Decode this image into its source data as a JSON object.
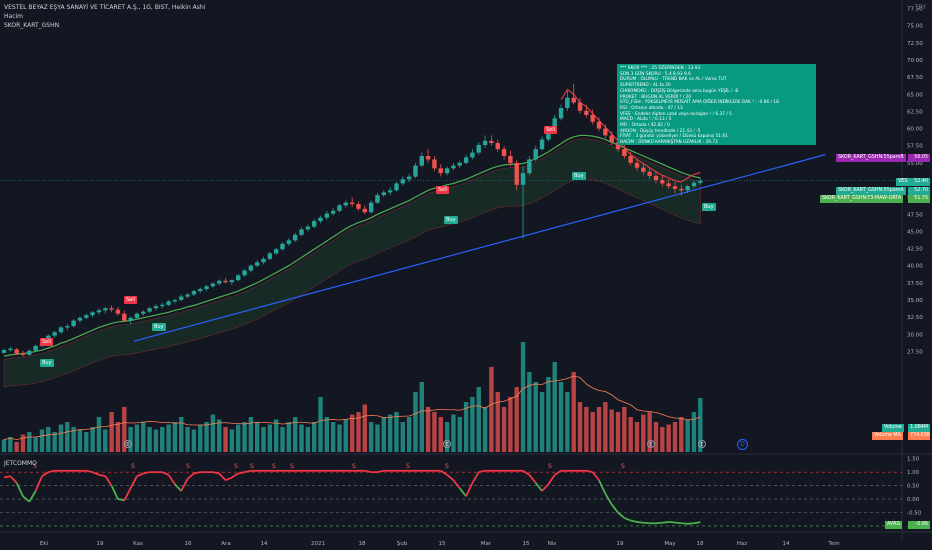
{
  "header": {
    "title": "VESTEL BEYAZ EŞYA SANAYİ VE TİCARET A.Ş., 1G, BIST, Heikin Ashi",
    "line2": "Hacim",
    "line3": "SKOR_KART_GSHN"
  },
  "currency": "TRY",
  "info_box": [
    "*** SKOR ***          : 25  ÜZERİNDEN  : 13.93",
    "SON 3 GÜN SKORU   : 5.4    8.93    9.6",
    "DURUM          : OLUMLU - TREND BAK ve AL / Varsa TUT",
    "SUPERTREND   : AL ta          20",
    "CHIKOMOKO    : DÜŞÜŞ Bölgesinde ama bugün YEŞİL      / -8",
    "PROKET         : BUGÜN AL VERDİ !        / 20",
    "STO_FISH      : YÜKSELMEYE MÜSAİT AMA DİĞER İNDİKLERE BAK ! : -0.86    / 18",
    "RSI              : Ortanın altında : 47 / 13",
    "VFEE             : Endeks dipten uzak veya durağan !    / 6.37   / 5",
    "MACD             : ALda !      / 0.13        / 5",
    "MFI               : Ortada        / 42.82   / 0",
    "AROON           : Düşüş trendinde       / 21.43   / -5",
    "FİYAT            : 3 gündür yükseliyor  /    Dünkü kapanış 51.61",
    "HACİM            : DÜNKÜ KAPANIŞTAN UZAKLIK   : 39.72"
  ],
  "price_labels": [
    {
      "text": "SKOR_KART_GSHN:55pamB",
      "value": "56.05",
      "bg": "#9c27b0"
    },
    {
      "text": "VESBE",
      "value": "52.40",
      "bg": "#22ab94"
    },
    {
      "text": "SKOR_KART_GSHN:55pamA",
      "value": "52.70",
      "bg": "#22ab94"
    },
    {
      "text": "SKOR_KART_GSHN-T3-MAW-ORTA",
      "value": "51.75",
      "bg": "#4caf50"
    }
  ],
  "volume_labels": [
    {
      "text": "Volume",
      "value": "1.084M",
      "bg": "#22ab94"
    },
    {
      "text": "Volume MA",
      "value": "774.03K",
      "bg": "#ff7f50"
    }
  ],
  "indicator": {
    "title": "JETCOMMO",
    "last_label": "AVRG",
    "last_value": "-0.86",
    "s_marks": [
      "S",
      "S",
      "S",
      "S",
      "S",
      "S",
      "S",
      "S",
      "S",
      "S",
      "S",
      "S"
    ],
    "circle_marks": [
      "E",
      "E",
      "E",
      "E"
    ],
    "settings": "D"
  },
  "axes": {
    "price_ticks": [
      "77.50",
      "75.00",
      "72.50",
      "70.00",
      "67.50",
      "65.00",
      "62.50",
      "60.00",
      "57.50",
      "55.00",
      "52.50",
      "50.00",
      "47.50",
      "45.00",
      "42.50",
      "40.00",
      "37.50",
      "35.00",
      "32.50",
      "30.00",
      "27.50"
    ],
    "osc_ticks": [
      "1.50",
      "1.00",
      "0.50",
      "0.00",
      "-0.50",
      "-1.00"
    ],
    "time_ticks": [
      "Eki",
      "19",
      "Kas",
      "16",
      "Ara",
      "14",
      "2021",
      "18",
      "Şub",
      "15",
      "Mar",
      "15",
      "Nis",
      "19",
      "May",
      "18",
      "Haz",
      "14",
      "Tem"
    ]
  },
  "signals": [
    {
      "type": "sell",
      "label": "Sell"
    },
    {
      "type": "buy",
      "label": "Buy"
    },
    {
      "type": "sell",
      "label": "Sell"
    },
    {
      "type": "buy",
      "label": "Buy"
    },
    {
      "type": "sell",
      "label": "Sell"
    },
    {
      "type": "buy",
      "label": "Buy"
    },
    {
      "type": "sell",
      "label": "Sell"
    },
    {
      "type": "buy",
      "label": "Buy"
    },
    {
      "type": "buy",
      "label": "Buy"
    }
  ],
  "colors": {
    "up": "#26a69a",
    "down": "#ef5350",
    "ma": "#4caf50",
    "trend": "#2962ff",
    "red_ma": "#f23645",
    "osc": "#f23645"
  },
  "chart_data": {
    "type": "candlestick",
    "ylim": [
      26.25,
      78.75
    ],
    "ohlc_ha": [
      [
        27.3,
        27.9,
        27.1,
        27.7
      ],
      [
        27.7,
        28.2,
        27.5,
        27.9
      ],
      [
        27.8,
        28.0,
        27.0,
        27.2
      ],
      [
        27.2,
        27.6,
        26.8,
        27.0
      ],
      [
        27.0,
        27.8,
        26.9,
        27.6
      ],
      [
        27.6,
        28.5,
        27.4,
        28.3
      ],
      [
        28.3,
        29.0,
        28.1,
        28.8
      ],
      [
        28.8,
        30.0,
        28.6,
        29.8
      ],
      [
        29.8,
        30.5,
        29.5,
        30.3
      ],
      [
        30.3,
        31.2,
        30.1,
        31.0
      ],
      [
        31.0,
        31.5,
        30.6,
        31.2
      ],
      [
        31.2,
        32.2,
        31.0,
        32.0
      ],
      [
        32.0,
        32.6,
        31.7,
        32.4
      ],
      [
        32.4,
        33.0,
        32.2,
        32.8
      ],
      [
        32.8,
        33.4,
        32.5,
        33.2
      ],
      [
        33.2,
        33.8,
        32.9,
        33.5
      ],
      [
        33.5,
        34.0,
        33.0,
        33.8
      ],
      [
        33.8,
        34.2,
        33.2,
        33.6
      ],
      [
        33.6,
        34.0,
        32.7,
        33.0
      ],
      [
        33.0,
        33.4,
        31.8,
        32.0
      ],
      [
        32.0,
        32.6,
        31.5,
        32.4
      ],
      [
        32.4,
        33.2,
        32.2,
        33.0
      ],
      [
        33.0,
        33.5,
        32.7,
        33.3
      ],
      [
        33.3,
        34.0,
        33.1,
        33.8
      ],
      [
        33.8,
        34.4,
        33.5,
        34.1
      ],
      [
        34.1,
        34.6,
        33.8,
        34.3
      ],
      [
        34.3,
        35.0,
        34.1,
        34.8
      ],
      [
        34.8,
        35.2,
        34.5,
        35.0
      ],
      [
        35.0,
        35.8,
        34.8,
        35.5
      ],
      [
        35.5,
        36.0,
        35.3,
        35.8
      ],
      [
        35.8,
        36.5,
        35.6,
        36.3
      ],
      [
        36.3,
        36.8,
        36.0,
        36.6
      ],
      [
        36.6,
        37.2,
        36.3,
        37.0
      ],
      [
        37.0,
        37.6,
        36.8,
        37.4
      ],
      [
        37.4,
        38.0,
        37.1,
        37.8
      ],
      [
        37.8,
        38.2,
        37.4,
        37.6
      ],
      [
        37.6,
        38.0,
        37.2,
        37.9
      ],
      [
        37.9,
        38.8,
        37.7,
        38.6
      ],
      [
        38.6,
        39.5,
        38.4,
        39.3
      ],
      [
        39.3,
        40.2,
        39.0,
        40.0
      ],
      [
        40.0,
        40.8,
        39.8,
        40.5
      ],
      [
        40.5,
        41.3,
        40.2,
        41.0
      ],
      [
        41.0,
        42.0,
        40.8,
        41.8
      ],
      [
        41.8,
        42.6,
        41.6,
        42.4
      ],
      [
        42.4,
        43.4,
        42.2,
        43.2
      ],
      [
        43.2,
        44.0,
        42.9,
        43.7
      ],
      [
        43.7,
        44.8,
        43.5,
        44.5
      ],
      [
        44.5,
        45.6,
        44.3,
        45.3
      ],
      [
        45.3,
        46.0,
        45.0,
        45.7
      ],
      [
        45.7,
        46.8,
        45.5,
        46.5
      ],
      [
        46.5,
        47.3,
        46.2,
        47.0
      ],
      [
        47.0,
        48.0,
        46.7,
        47.6
      ],
      [
        47.6,
        48.4,
        47.3,
        48.0
      ],
      [
        48.0,
        49.0,
        47.8,
        48.8
      ],
      [
        48.8,
        49.5,
        48.5,
        49.2
      ],
      [
        49.2,
        50.0,
        48.6,
        49.0
      ],
      [
        49.0,
        49.4,
        48.0,
        48.3
      ],
      [
        48.3,
        48.8,
        47.5,
        47.8
      ],
      [
        47.8,
        49.5,
        47.6,
        49.2
      ],
      [
        49.2,
        50.6,
        49.0,
        50.3
      ],
      [
        50.3,
        51.0,
        50.0,
        50.7
      ],
      [
        50.7,
        51.4,
        50.3,
        51.0
      ],
      [
        51.0,
        52.2,
        50.8,
        52.0
      ],
      [
        52.0,
        53.0,
        51.7,
        52.6
      ],
      [
        52.6,
        53.4,
        52.2,
        53.0
      ],
      [
        53.0,
        55.0,
        52.8,
        54.6
      ],
      [
        54.6,
        56.5,
        54.4,
        56.0
      ],
      [
        56.0,
        57.0,
        55.0,
        55.5
      ],
      [
        55.5,
        56.0,
        53.8,
        54.2
      ],
      [
        54.2,
        54.8,
        53.0,
        53.5
      ],
      [
        53.5,
        54.5,
        53.2,
        54.2
      ],
      [
        54.2,
        55.0,
        53.9,
        54.6
      ],
      [
        54.6,
        55.3,
        54.3,
        55.0
      ],
      [
        55.0,
        56.2,
        54.8,
        55.8
      ],
      [
        55.8,
        57.0,
        55.5,
        56.5
      ],
      [
        56.5,
        58.0,
        56.2,
        57.6
      ],
      [
        57.6,
        59.0,
        57.2,
        58.2
      ],
      [
        58.2,
        59.0,
        57.5,
        57.9
      ],
      [
        57.9,
        58.4,
        56.6,
        57.0
      ],
      [
        57.0,
        57.5,
        55.5,
        56.0
      ],
      [
        56.0,
        56.8,
        54.5,
        55.0
      ],
      [
        55.0,
        55.4,
        51.0,
        51.8
      ],
      [
        51.8,
        54.5,
        44.0,
        53.5
      ],
      [
        53.5,
        56.0,
        53.2,
        55.5
      ],
      [
        55.5,
        57.5,
        55.2,
        57.0
      ],
      [
        57.0,
        58.8,
        56.8,
        58.4
      ],
      [
        58.4,
        60.4,
        58.1,
        60.0
      ],
      [
        60.0,
        62.0,
        59.7,
        61.5
      ],
      [
        61.5,
        63.5,
        61.2,
        63.0
      ],
      [
        63.0,
        65.5,
        62.6,
        64.5
      ],
      [
        64.5,
        66.5,
        63.5,
        63.8
      ],
      [
        63.8,
        64.5,
        62.2,
        62.6
      ],
      [
        62.6,
        63.4,
        61.6,
        62.0
      ],
      [
        62.0,
        62.8,
        60.6,
        61.0
      ],
      [
        61.0,
        61.6,
        59.6,
        60.0
      ],
      [
        60.0,
        60.6,
        58.6,
        59.0
      ],
      [
        59.0,
        59.6,
        57.6,
        58.0
      ],
      [
        58.0,
        58.6,
        56.6,
        57.0
      ],
      [
        57.0,
        57.6,
        55.6,
        56.0
      ],
      [
        56.0,
        56.6,
        54.6,
        55.0
      ],
      [
        55.0,
        55.6,
        53.8,
        54.3
      ],
      [
        54.3,
        55.0,
        53.2,
        53.7
      ],
      [
        53.7,
        54.4,
        52.6,
        53.1
      ],
      [
        53.1,
        53.8,
        52.0,
        52.5
      ],
      [
        52.5,
        53.2,
        51.6,
        52.0
      ],
      [
        52.0,
        52.6,
        51.2,
        51.6
      ],
      [
        51.6,
        52.2,
        50.6,
        51.2
      ],
      [
        51.2,
        51.8,
        50.2,
        51.0
      ],
      [
        51.0,
        51.8,
        50.6,
        51.6
      ],
      [
        51.6,
        52.4,
        51.3,
        52.1
      ],
      [
        52.1,
        52.8,
        51.8,
        52.4
      ]
    ],
    "ma_green": [
      26.8,
      27.0,
      27.1,
      27.2,
      27.3,
      27.5,
      27.7,
      28.0,
      28.3,
      28.7,
      29.0,
      29.4,
      29.8,
      30.2,
      30.6,
      31.0,
      31.3,
      31.6,
      31.8,
      31.9,
      32.0,
      32.2,
      32.4,
      32.6,
      32.8,
      33.0,
      33.2,
      33.5,
      33.7,
      34.0,
      34.2,
      34.5,
      34.8,
      35.1,
      35.4,
      35.7,
      36.0,
      36.3,
      36.7,
      37.1,
      37.5,
      38.0,
      38.5,
      39.0,
      39.5,
      40.0,
      40.6,
      41.2,
      41.8,
      42.4,
      43.0,
      43.6,
      44.2,
      44.8,
      45.4,
      45.9,
      46.3,
      46.6,
      47.0,
      47.5,
      47.9,
      48.3,
      48.7,
      49.1,
      49.5,
      50.0,
      50.5,
      51.0,
      51.3,
      51.5,
      51.8,
      52.0,
      52.3,
      52.6,
      53.0,
      53.4,
      53.8,
      54.2,
      54.5,
      54.7,
      54.8,
      54.8,
      54.9,
      55.2,
      55.6,
      56.1,
      56.6,
      57.2,
      57.8,
      58.4,
      58.8,
      59.0,
      59.0,
      58.9,
      58.7,
      58.4,
      58.0,
      57.6,
      57.2,
      56.8,
      56.4,
      56.0,
      55.6,
      55.2,
      54.8,
      54.4,
      54.0,
      53.6,
      53.3,
      53.0,
      52.8
    ],
    "trendline": {
      "x0": 0,
      "y0": 26.8,
      "x1": 110,
      "y1": 56.2
    },
    "volume": [
      0.25,
      0.3,
      0.2,
      0.35,
      0.4,
      0.3,
      0.45,
      0.5,
      0.4,
      0.55,
      0.6,
      0.5,
      0.45,
      0.4,
      0.5,
      0.7,
      0.45,
      0.8,
      0.6,
      0.9,
      0.5,
      0.55,
      0.6,
      0.5,
      0.45,
      0.5,
      0.55,
      0.6,
      0.7,
      0.5,
      0.45,
      0.55,
      0.6,
      0.75,
      0.65,
      0.5,
      0.45,
      0.55,
      0.6,
      0.7,
      0.6,
      0.5,
      0.55,
      0.65,
      0.5,
      0.6,
      0.7,
      0.55,
      0.5,
      0.6,
      1.1,
      0.7,
      0.6,
      0.55,
      0.65,
      0.75,
      0.8,
      0.95,
      0.6,
      0.55,
      0.7,
      0.75,
      0.8,
      0.6,
      0.7,
      1.2,
      1.4,
      0.9,
      0.8,
      0.7,
      0.6,
      0.75,
      0.7,
      1.0,
      1.1,
      1.3,
      0.9,
      1.7,
      1.2,
      0.9,
      1.1,
      1.3,
      2.2,
      1.6,
      1.4,
      1.2,
      1.5,
      1.8,
      1.4,
      1.2,
      1.6,
      1.0,
      0.9,
      0.8,
      0.9,
      1.0,
      0.85,
      0.8,
      0.9,
      0.7,
      0.6,
      0.75,
      0.8,
      0.6,
      0.5,
      0.55,
      0.6,
      0.7,
      0.65,
      0.8,
      1.08
    ],
    "osc": [
      0.8,
      0.85,
      0.6,
      0.1,
      -0.1,
      0.3,
      0.85,
      1.0,
      1.05,
      1.05,
      1.05,
      1.05,
      1.05,
      1.05,
      1.0,
      0.9,
      0.85,
      0.5,
      0.0,
      -0.05,
      0.4,
      0.85,
      0.95,
      1.0,
      1.0,
      1.0,
      0.9,
      0.55,
      0.3,
      0.75,
      0.95,
      1.0,
      1.0,
      1.0,
      0.95,
      0.7,
      0.8,
      0.95,
      1.0,
      1.05,
      1.05,
      1.05,
      1.05,
      1.05,
      1.05,
      1.05,
      1.05,
      1.05,
      1.05,
      1.05,
      1.05,
      1.05,
      1.05,
      1.05,
      1.05,
      1.05,
      1.05,
      1.05,
      1.0,
      1.0,
      1.05,
      1.05,
      1.05,
      1.05,
      1.05,
      1.05,
      1.05,
      1.05,
      1.05,
      1.05,
      0.9,
      0.7,
      0.4,
      0.1,
      0.6,
      1.0,
      1.05,
      1.05,
      1.05,
      1.05,
      1.05,
      1.05,
      1.05,
      0.9,
      0.6,
      0.3,
      0.55,
      0.9,
      1.05,
      1.05,
      1.05,
      1.05,
      1.05,
      1.0,
      0.7,
      0.2,
      -0.2,
      -0.5,
      -0.7,
      -0.8,
      -0.85,
      -0.88,
      -0.9,
      -0.9,
      -0.88,
      -0.85,
      -0.87,
      -0.9,
      -0.92,
      -0.9,
      -0.86
    ]
  }
}
